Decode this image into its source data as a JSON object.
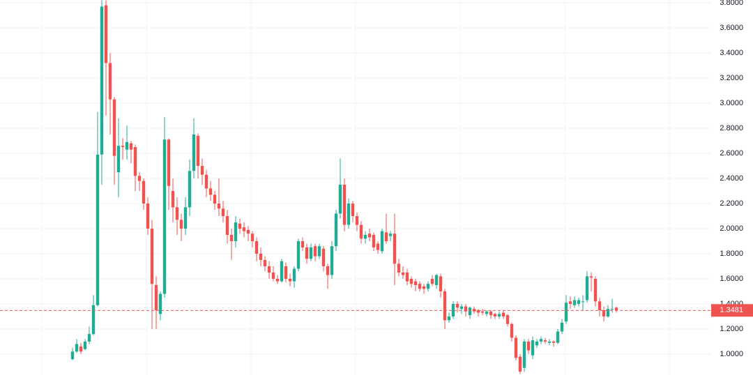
{
  "chart_data": {
    "type": "candlestick",
    "up_color": "#22ab94",
    "down_color": "#ef5350",
    "grid": true,
    "ylim": [
      0.8333,
      3.8222
    ],
    "yticks": [
      {
        "value": 1.0,
        "label": "1.0000"
      },
      {
        "value": 1.2,
        "label": "1.2000"
      },
      {
        "value": 1.4,
        "label": "1.4000"
      },
      {
        "value": 1.6,
        "label": "1.6000"
      },
      {
        "value": 1.8,
        "label": "1.8000"
      },
      {
        "value": 2.0,
        "label": "2.0000"
      },
      {
        "value": 2.2,
        "label": "2.2000"
      },
      {
        "value": 2.4,
        "label": "2.4000"
      },
      {
        "value": 2.6,
        "label": "2.6000"
      },
      {
        "value": 2.8,
        "label": "2.8000"
      },
      {
        "value": 3.0,
        "label": "3.0000"
      },
      {
        "value": 3.2,
        "label": "3.2000"
      },
      {
        "value": 3.4,
        "label": "3.4000"
      },
      {
        "value": 3.6,
        "label": "3.6000"
      },
      {
        "value": 3.8,
        "label": "3.8000"
      }
    ],
    "last_price": 1.3481,
    "candles": [
      [
        0.96,
        1.05,
        0.95,
        1.02
      ],
      [
        1.02,
        1.12,
        1.01,
        1.08
      ],
      [
        1.06,
        1.09,
        1.0,
        1.02
      ],
      [
        1.04,
        1.12,
        1.03,
        1.1
      ],
      [
        1.1,
        1.22,
        1.08,
        1.16
      ],
      [
        1.16,
        1.47,
        1.15,
        1.39
      ],
      [
        1.39,
        2.93,
        1.38,
        2.59
      ],
      [
        2.59,
        3.82,
        2.35,
        3.77
      ],
      [
        3.78,
        3.82,
        2.9,
        3.32
      ],
      [
        3.32,
        3.4,
        2.75,
        3.03
      ],
      [
        3.03,
        3.05,
        2.35,
        2.58
      ],
      [
        2.45,
        2.88,
        2.25,
        2.66
      ],
      [
        2.66,
        2.72,
        2.55,
        2.65
      ],
      [
        2.63,
        2.82,
        2.55,
        2.69
      ],
      [
        2.68,
        2.7,
        2.52,
        2.63
      ],
      [
        2.65,
        2.67,
        2.3,
        2.42
      ],
      [
        2.42,
        2.45,
        2.3,
        2.38
      ],
      [
        2.38,
        2.4,
        2.15,
        2.2
      ],
      [
        2.2,
        2.25,
        1.95,
        2.0
      ],
      [
        2.0,
        2.07,
        1.2,
        1.56
      ],
      [
        1.55,
        1.62,
        1.2,
        1.35
      ],
      [
        1.32,
        1.5,
        1.27,
        1.48
      ],
      [
        1.48,
        2.89,
        1.45,
        2.71
      ],
      [
        2.71,
        2.72,
        2.15,
        2.34
      ],
      [
        2.3,
        2.4,
        2.05,
        2.17
      ],
      [
        2.17,
        2.25,
        1.95,
        2.07
      ],
      [
        2.07,
        2.12,
        1.9,
        2.0
      ],
      [
        2.0,
        2.25,
        1.95,
        2.17
      ],
      [
        2.17,
        2.55,
        2.1,
        2.46
      ],
      [
        2.46,
        2.88,
        2.4,
        2.75
      ],
      [
        2.74,
        2.76,
        2.4,
        2.5
      ],
      [
        2.5,
        2.56,
        2.35,
        2.43
      ],
      [
        2.43,
        2.47,
        2.25,
        2.32
      ],
      [
        2.32,
        2.38,
        2.22,
        2.27
      ],
      [
        2.27,
        2.3,
        2.15,
        2.2
      ],
      [
        2.2,
        2.4,
        2.1,
        2.16
      ],
      [
        2.16,
        2.22,
        2.05,
        2.1
      ],
      [
        2.1,
        2.15,
        1.88,
        1.95
      ],
      [
        1.95,
        2.0,
        1.75,
        1.9
      ],
      [
        1.9,
        2.1,
        1.85,
        2.05
      ],
      [
        2.04,
        2.08,
        1.96,
        2.0
      ],
      [
        2.01,
        2.05,
        1.93,
        1.98
      ],
      [
        1.99,
        2.02,
        1.9,
        1.96
      ],
      [
        1.96,
        1.98,
        1.85,
        1.9
      ],
      [
        1.9,
        1.93,
        1.74,
        1.8
      ],
      [
        1.8,
        1.85,
        1.7,
        1.75
      ],
      [
        1.75,
        1.78,
        1.66,
        1.7
      ],
      [
        1.7,
        1.74,
        1.6,
        1.65
      ],
      [
        1.65,
        1.7,
        1.58,
        1.6
      ],
      [
        1.6,
        1.63,
        1.56,
        1.58
      ],
      [
        1.58,
        1.76,
        1.57,
        1.74
      ],
      [
        1.7,
        1.73,
        1.57,
        1.6
      ],
      [
        1.6,
        1.64,
        1.54,
        1.58
      ],
      [
        1.58,
        1.7,
        1.53,
        1.68
      ],
      [
        1.68,
        1.92,
        1.66,
        1.9
      ],
      [
        1.9,
        1.93,
        1.82,
        1.85
      ],
      [
        1.85,
        1.88,
        1.72,
        1.76
      ],
      [
        1.76,
        1.88,
        1.74,
        1.85
      ],
      [
        1.86,
        1.88,
        1.74,
        1.78
      ],
      [
        1.78,
        1.88,
        1.76,
        1.86
      ],
      [
        1.84,
        1.86,
        1.66,
        1.7
      ],
      [
        1.7,
        1.72,
        1.52,
        1.63
      ],
      [
        1.63,
        1.9,
        1.6,
        1.86
      ],
      [
        1.86,
        2.15,
        1.82,
        2.12
      ],
      [
        2.12,
        2.56,
        2.08,
        2.35
      ],
      [
        2.35,
        2.4,
        1.98,
        2.03
      ],
      [
        2.03,
        2.24,
        2.0,
        2.2
      ],
      [
        2.2,
        2.22,
        2.05,
        2.1
      ],
      [
        2.1,
        2.13,
        1.98,
        2.03
      ],
      [
        2.03,
        2.06,
        1.88,
        1.92
      ],
      [
        1.92,
        1.98,
        1.88,
        1.95
      ],
      [
        1.96,
        2.0,
        1.9,
        1.93
      ],
      [
        1.95,
        1.97,
        1.82,
        1.85
      ],
      [
        1.88,
        1.9,
        1.8,
        1.83
      ],
      [
        1.82,
        2.0,
        1.8,
        1.98
      ],
      [
        1.97,
        2.12,
        1.88,
        1.9
      ],
      [
        1.94,
        1.98,
        1.9,
        1.96
      ],
      [
        1.96,
        2.12,
        1.55,
        1.72
      ],
      [
        1.72,
        1.76,
        1.62,
        1.65
      ],
      [
        1.65,
        1.7,
        1.6,
        1.63
      ],
      [
        1.65,
        1.68,
        1.55,
        1.58
      ],
      [
        1.6,
        1.62,
        1.53,
        1.56
      ],
      [
        1.58,
        1.6,
        1.5,
        1.55
      ],
      [
        1.56,
        1.58,
        1.5,
        1.52
      ],
      [
        1.54,
        1.56,
        1.48,
        1.52
      ],
      [
        1.52,
        1.58,
        1.5,
        1.56
      ],
      [
        1.6,
        1.63,
        1.54,
        1.56
      ],
      [
        1.55,
        1.64,
        1.52,
        1.63
      ],
      [
        1.62,
        1.64,
        1.45,
        1.5
      ],
      [
        1.5,
        1.52,
        1.2,
        1.27
      ],
      [
        1.27,
        1.33,
        1.25,
        1.3
      ],
      [
        1.3,
        1.42,
        1.28,
        1.4
      ],
      [
        1.4,
        1.42,
        1.33,
        1.37
      ],
      [
        1.36,
        1.4,
        1.32,
        1.38
      ],
      [
        1.38,
        1.4,
        1.3,
        1.34
      ],
      [
        1.31,
        1.38,
        1.28,
        1.37
      ],
      [
        1.36,
        1.38,
        1.32,
        1.34
      ],
      [
        1.35,
        1.36,
        1.3,
        1.33
      ],
      [
        1.34,
        1.36,
        1.31,
        1.33
      ],
      [
        1.32,
        1.35,
        1.3,
        1.34
      ],
      [
        1.34,
        1.35,
        1.28,
        1.31
      ],
      [
        1.32,
        1.33,
        1.28,
        1.3
      ],
      [
        1.3,
        1.34,
        1.28,
        1.32
      ],
      [
        1.33,
        1.35,
        1.28,
        1.3
      ],
      [
        1.31,
        1.32,
        1.22,
        1.24
      ],
      [
        1.24,
        1.25,
        1.1,
        1.13
      ],
      [
        1.13,
        1.15,
        0.95,
        0.97
      ],
      [
        0.98,
        1.0,
        0.84,
        0.86
      ],
      [
        0.89,
        1.12,
        0.86,
        1.1
      ],
      [
        1.1,
        1.12,
        1.0,
        1.03
      ],
      [
        0.99,
        1.14,
        0.96,
        1.11
      ],
      [
        1.07,
        1.12,
        1.05,
        1.1
      ],
      [
        1.1,
        1.14,
        1.08,
        1.12
      ],
      [
        1.11,
        1.13,
        1.08,
        1.1
      ],
      [
        1.09,
        1.12,
        1.07,
        1.1
      ],
      [
        1.1,
        1.11,
        1.06,
        1.09
      ],
      [
        1.09,
        1.2,
        1.08,
        1.18
      ],
      [
        1.18,
        1.28,
        1.16,
        1.25
      ],
      [
        1.26,
        1.47,
        1.24,
        1.41
      ],
      [
        1.42,
        1.46,
        1.36,
        1.4
      ],
      [
        1.39,
        1.46,
        1.37,
        1.43
      ],
      [
        1.4,
        1.45,
        1.38,
        1.43
      ],
      [
        1.42,
        1.47,
        1.35,
        1.42
      ],
      [
        1.43,
        1.66,
        1.41,
        1.62
      ],
      [
        1.62,
        1.65,
        1.5,
        1.61
      ],
      [
        1.6,
        1.62,
        1.38,
        1.42
      ],
      [
        1.42,
        1.45,
        1.3,
        1.35
      ],
      [
        1.35,
        1.38,
        1.26,
        1.3
      ],
      [
        1.3,
        1.39,
        1.29,
        1.36
      ],
      [
        1.36,
        1.44,
        1.33,
        1.36
      ],
      [
        1.37,
        1.38,
        1.33,
        1.3481
      ]
    ]
  }
}
